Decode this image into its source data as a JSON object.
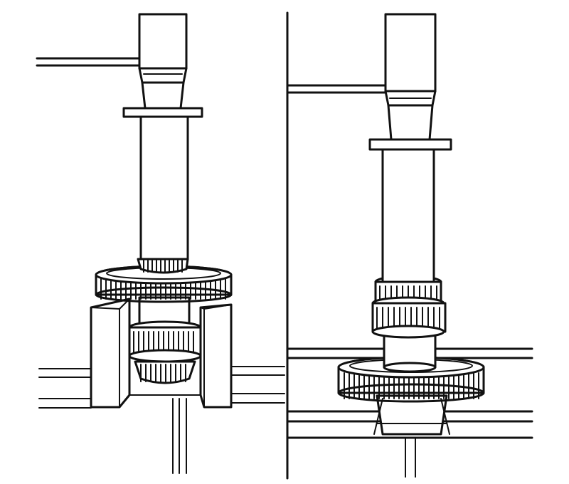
{
  "figure": {
    "panels": [
      {
        "id": "left",
        "depicts": "press-shaft-gear-in-support-stand"
      },
      {
        "id": "right",
        "depicts": "press-shaft-gear-on-base-plate"
      }
    ],
    "colors": {
      "ink": "#111111",
      "paper": "#ffffff"
    }
  }
}
